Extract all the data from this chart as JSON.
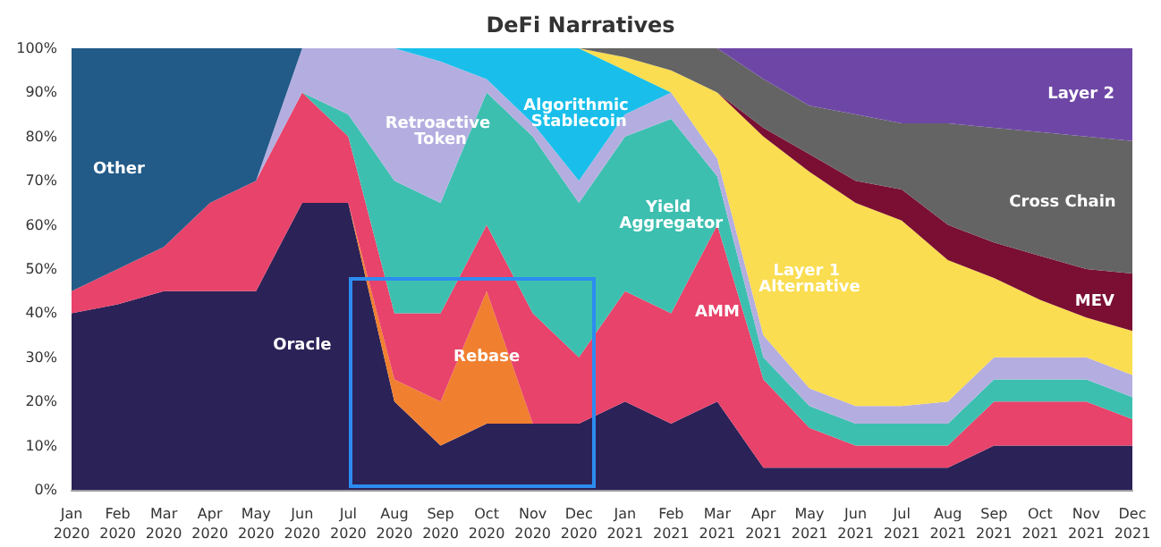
{
  "chart_data": {
    "type": "area",
    "stacked": true,
    "title": "DeFi Narratives",
    "categories": [
      "Jan 2020",
      "Feb 2020",
      "Mar 2020",
      "Apr 2020",
      "May 2020",
      "Jun 2020",
      "Jul 2020",
      "Aug 2020",
      "Sep 2020",
      "Oct 2020",
      "Nov 2020",
      "Dec 2020",
      "Jan 2021",
      "Feb 2021",
      "Mar 2021",
      "Apr 2021",
      "May 2021",
      "Jun 2021",
      "Jul 2021",
      "Aug 2021",
      "Sep 2021",
      "Oct 2021",
      "Nov 2021",
      "Dec 2021"
    ],
    "ylim": [
      0,
      100
    ],
    "yticks": [
      {
        "value": 0,
        "label": "0%"
      },
      {
        "value": 10,
        "label": "10%"
      },
      {
        "value": 20,
        "label": "20%"
      },
      {
        "value": 30,
        "label": "30%"
      },
      {
        "value": 40,
        "label": "40%"
      },
      {
        "value": 50,
        "label": "50%"
      },
      {
        "value": 60,
        "label": "60%"
      },
      {
        "value": 70,
        "label": "70%"
      },
      {
        "value": 80,
        "label": "80%"
      },
      {
        "value": 90,
        "label": "90%"
      },
      {
        "value": 100,
        "label": "100%"
      }
    ],
    "grid": false,
    "legend": false,
    "series": [
      {
        "name": "Oracle",
        "color": "#2b2257",
        "values": [
          40,
          42,
          45,
          45,
          45,
          65,
          65,
          20,
          10,
          15,
          15,
          15,
          20,
          15,
          20,
          5,
          5,
          5,
          5,
          5,
          10,
          10,
          10,
          10
        ]
      },
      {
        "name": "Rebase",
        "color": "#f08030",
        "values": [
          null,
          null,
          null,
          null,
          null,
          null,
          0,
          5,
          10,
          30,
          0,
          null,
          null,
          null,
          null,
          null,
          null,
          null,
          null,
          null,
          null,
          null,
          null,
          null
        ]
      },
      {
        "name": "AMM",
        "color": "#e8436a",
        "values": [
          5,
          8,
          10,
          20,
          25,
          25,
          15,
          15,
          20,
          15,
          25,
          15,
          25,
          25,
          40,
          20,
          9,
          5,
          5,
          5,
          10,
          10,
          10,
          6
        ]
      },
      {
        "name": "Yield Aggregator",
        "color": "#3dbfb0",
        "values": [
          null,
          null,
          null,
          null,
          null,
          0,
          5,
          30,
          25,
          30,
          40,
          35,
          35,
          44,
          11,
          5,
          5,
          5,
          5,
          5,
          5,
          5,
          5,
          5
        ]
      },
      {
        "name": "Retroactive Token",
        "color": "#b4aee0",
        "values": [
          null,
          null,
          null,
          null,
          0,
          10,
          15,
          30,
          32,
          3,
          3,
          5,
          5,
          6,
          4,
          5,
          4,
          4,
          4,
          5,
          5,
          5,
          5,
          5
        ]
      },
      {
        "name": "Algorithmic Stablecoin",
        "color": "#19bfea",
        "values": [
          null,
          null,
          null,
          null,
          null,
          null,
          null,
          0,
          3,
          7,
          17,
          30,
          10,
          0,
          null,
          null,
          null,
          null,
          null,
          null,
          null,
          null,
          null,
          null
        ]
      },
      {
        "name": "Other",
        "color": "#225a88",
        "values": [
          55,
          50,
          45,
          35,
          30,
          0,
          null,
          null,
          null,
          null,
          null,
          null,
          null,
          null,
          null,
          null,
          null,
          null,
          null,
          null,
          null,
          null,
          null,
          null
        ]
      },
      {
        "name": "Layer 1 Alternative",
        "color": "#fadd50",
        "values": [
          null,
          null,
          null,
          null,
          null,
          null,
          null,
          null,
          null,
          null,
          null,
          0,
          3,
          5,
          15,
          45,
          49,
          46,
          42,
          32,
          18,
          13,
          9,
          10
        ]
      },
      {
        "name": "MEV",
        "color": "#7a0f33",
        "values": [
          null,
          null,
          null,
          null,
          null,
          null,
          null,
          null,
          null,
          null,
          null,
          null,
          null,
          null,
          0,
          2,
          4,
          5,
          7,
          8,
          8,
          10,
          11,
          13
        ]
      },
      {
        "name": "Cross Chain",
        "color": "#646464",
        "values": [
          null,
          null,
          null,
          null,
          null,
          null,
          null,
          null,
          null,
          null,
          null,
          0,
          2,
          5,
          10,
          11,
          11,
          15,
          15,
          23,
          26,
          28,
          30,
          30
        ]
      },
      {
        "name": "Layer 2",
        "color": "#6e47a6",
        "values": [
          null,
          null,
          null,
          null,
          null,
          null,
          null,
          null,
          null,
          null,
          null,
          null,
          null,
          null,
          0,
          7,
          13,
          15,
          17,
          17,
          18,
          19,
          20,
          21
        ]
      }
    ]
  }
}
